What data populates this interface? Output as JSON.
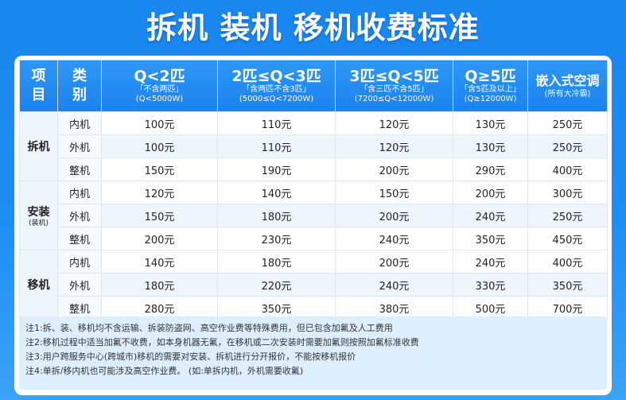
{
  "title": "拆机 装机 移机收费标准",
  "header": {
    "item": "项目",
    "kind": "类别",
    "col1": {
      "main": "Q<2匹",
      "sub1": "「不含两匹」",
      "sub2": "(Q<5000W)"
    },
    "col2": {
      "main": "2匹≤Q<3匹",
      "sub1": "「含两匹不含3匹」",
      "sub2": "(5000≤Q<7200W)"
    },
    "col3": {
      "main": "3匹≤Q<5匹",
      "sub1": "「含三匹不含5匹」",
      "sub2": "(7200≤Q<12000W)"
    },
    "col4": {
      "main": "Q≥5匹",
      "sub1": "「含5匹及以上」",
      "sub2": "(Q≥12000W)"
    },
    "col5": {
      "main": "嵌入式空调",
      "sub1": "(所有大冷霸)"
    }
  },
  "groups": [
    {
      "name": "拆机",
      "sub": "",
      "rows": [
        {
          "kind": "内机",
          "v": [
            "100元",
            "110元",
            "120元",
            "130元",
            "250元"
          ]
        },
        {
          "kind": "外机",
          "v": [
            "100元",
            "110元",
            "120元",
            "130元",
            "250元"
          ]
        },
        {
          "kind": "整机",
          "v": [
            "150元",
            "190元",
            "200元",
            "290元",
            "400元"
          ]
        }
      ]
    },
    {
      "name": "安装",
      "sub": "(装机)",
      "rows": [
        {
          "kind": "内机",
          "v": [
            "120元",
            "140元",
            "150元",
            "200元",
            "300元"
          ]
        },
        {
          "kind": "外机",
          "v": [
            "150元",
            "180元",
            "200元",
            "240元",
            "250元"
          ]
        },
        {
          "kind": "整机",
          "v": [
            "200元",
            "230元",
            "240元",
            "350元",
            "450元"
          ]
        }
      ]
    },
    {
      "name": "移机",
      "sub": "",
      "rows": [
        {
          "kind": "内机",
          "v": [
            "140元",
            "180元",
            "200元",
            "240元",
            "400元"
          ]
        },
        {
          "kind": "外机",
          "v": [
            "180元",
            "220元",
            "240元",
            "330元",
            "350元"
          ]
        },
        {
          "kind": "整机",
          "v": [
            "280元",
            "350元",
            "380元",
            "500元",
            "700元"
          ]
        }
      ]
    }
  ],
  "notes": [
    "注1:拆、装、移机均不含运输、拆装防盗网、高空作业费等特殊费用，但已包含加氟及人工费用",
    "注2:移机过程中适当加氟不收费，如本身机器无氟，在移机或二次安装时需要加氟则按照加氟标准收费",
    "注3:用户跨服务中心(跨城市)移机的需要对安装、拆机进行分开报价，不能按移机报价",
    "注4:单拆/移内机也可能涉及高空作业费。 (如:单拆内机，外机需要收氟)"
  ]
}
